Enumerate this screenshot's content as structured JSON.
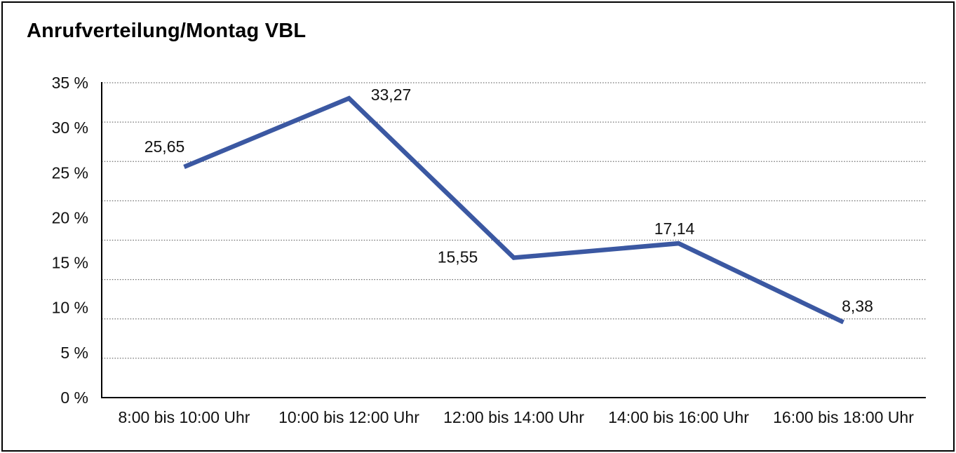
{
  "chart_data": {
    "type": "line",
    "title": "Anrufverteilung/Montag VBL",
    "categories": [
      "8:00 bis 10:00 Uhr",
      "10:00 bis 12:00 Uhr",
      "12:00 bis 14:00 Uhr",
      "14:00 bis 16:00 Uhr",
      "16:00 bis 18:00 Uhr"
    ],
    "values": [
      25.65,
      33.27,
      15.55,
      17.14,
      8.38
    ],
    "point_labels": [
      "25,65",
      "33,27",
      "15,55",
      "17,14",
      "8,38"
    ],
    "y_tick_labels": [
      "0 %",
      "5 %",
      "10 %",
      "15 %",
      "20 %",
      "25 %",
      "30 %",
      "35 %"
    ],
    "y_tick_values": [
      0,
      5,
      10,
      15,
      20,
      25,
      30,
      35
    ],
    "ylim": [
      0,
      35
    ],
    "xlabel": "",
    "ylabel": "",
    "legend": "none",
    "grid": {
      "horizontal_dotted_divisions": 8,
      "vertical": "off"
    },
    "colors": {
      "line": "#3B58A2",
      "axis": "#000000",
      "gridline": "#6E6E6E",
      "text": "#111111",
      "background": "#FFFFFF",
      "frame_border": "#000000"
    }
  }
}
